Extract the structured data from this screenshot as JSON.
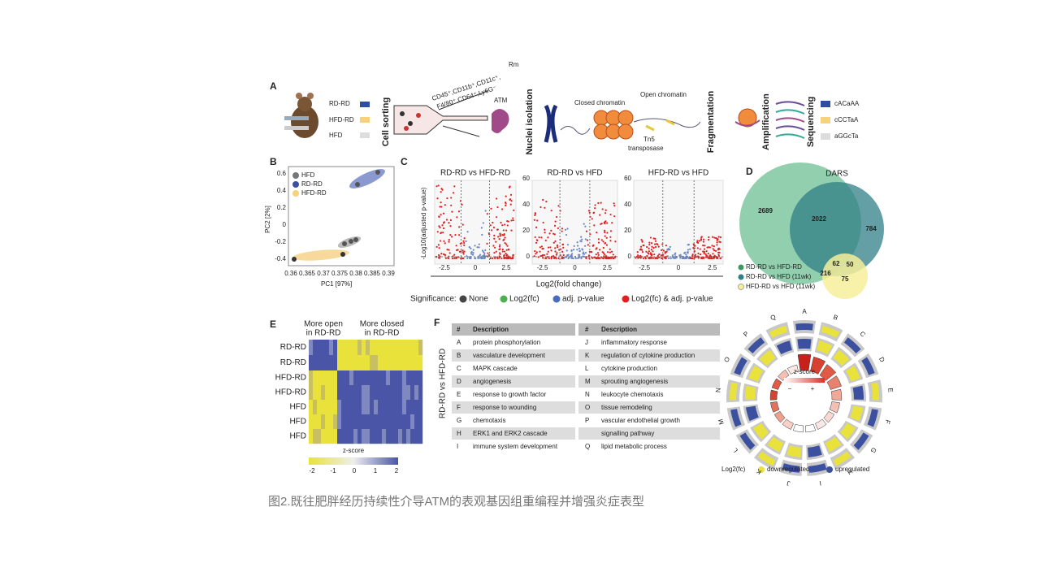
{
  "figure": {
    "a": {
      "label": "A",
      "groups": [
        "RD-RD",
        "HFD-RD",
        "HFD"
      ],
      "steps": [
        "Cell sorting",
        "Nuclei isolation",
        "Fragmentation",
        "Amplification",
        "Sequencing"
      ],
      "markers": [
        "CD45⁺,CD11b⁺,CD11c⁺,",
        "F4/80⁺,CD64⁺,Ly6G⁻"
      ],
      "cell": "ATM",
      "rm": "Rm",
      "closed": "Closed chromatin",
      "open": "Open chromatin",
      "enzyme": [
        "Tn5",
        "transposase"
      ],
      "motifs": [
        "cACaAA",
        "cCCTaA",
        "aGGcTa"
      ]
    },
    "b": {
      "label": "B",
      "legend": [
        "HFD",
        "RD-RD",
        "HFD-RD"
      ],
      "xlabel": "PC1 [97%]",
      "ylabel": "PC2 [2%]",
      "xticks": [
        "0.36",
        "0.365",
        "0.37",
        "0.375",
        "0.38",
        "0.385",
        "0.39"
      ],
      "yticks": [
        "0.6",
        "0.4",
        "0.2",
        "0",
        "-0.2",
        "-0.4"
      ]
    },
    "c": {
      "label": "C",
      "titles": [
        "RD-RD vs HFD-RD",
        "RD-RD vs HFD",
        "HFD-RD vs HFD"
      ],
      "ylabel": "-Log10(adjusted p-value)",
      "yticks": [
        "0",
        "20",
        "40",
        "60"
      ],
      "xticks": [
        "-2.5",
        "0",
        "2.5"
      ],
      "xlabel": "Log2(fold change)",
      "legend_title": "Significance:",
      "legend": [
        "None",
        "Log2(fc)",
        "adj. p-value",
        "Log2(fc) & adj. p-value"
      ]
    },
    "d": {
      "label": "D",
      "title": "DARS",
      "counts": [
        "2689",
        "2022",
        "784",
        "62",
        "50",
        "216",
        "75"
      ],
      "legend": [
        "RD-RD vs HFD-RD",
        "RD-RD vs HFD (11wk)",
        "HFD-RD vs HFD (11wk)"
      ]
    },
    "e": {
      "label": "E",
      "headers": [
        [
          "More open",
          "in RD-RD"
        ],
        [
          "More closed",
          "in RD-RD"
        ]
      ],
      "rows": [
        "RD-RD",
        "RD-RD",
        "HFD-RD",
        "HFD-RD",
        "HFD",
        "HFD",
        "HFD"
      ],
      "scale_title": "z-score",
      "scale_ticks": [
        "-2",
        "-1",
        "0",
        "1",
        "2"
      ]
    },
    "f": {
      "label": "F",
      "side": "RD-RD vs HFD-RD",
      "columns": [
        "#",
        "Description"
      ],
      "left": [
        [
          "A",
          "protein phosphorylation"
        ],
        [
          "B",
          "vasculature development"
        ],
        [
          "C",
          "MAPK cascade"
        ],
        [
          "D",
          "angiogenesis"
        ],
        [
          "E",
          "response to growth factor"
        ],
        [
          "F",
          "response to wounding"
        ],
        [
          "G",
          "chemotaxis"
        ],
        [
          "H",
          "ERK1 and ERK2 cascade"
        ],
        [
          "I",
          "immune system development"
        ]
      ],
      "right": [
        [
          "J",
          "inflammatory response"
        ],
        [
          "K",
          "regulation of cytokine production"
        ],
        [
          "L",
          "cytokine production"
        ],
        [
          "M",
          "sprouting angiogenesis"
        ],
        [
          "N",
          "leukocyte chemotaxis"
        ],
        [
          "O",
          "tissue remodeling"
        ],
        [
          "P",
          "vascular endothelial growth",
          "signalling pathway"
        ],
        [
          "Q",
          "lipid metabolic process"
        ]
      ]
    },
    "g": {
      "letters": [
        "A",
        "B",
        "C",
        "D",
        "E",
        "F",
        "G",
        "H",
        "I",
        "J",
        "K",
        "L",
        "M",
        "N",
        "O",
        "P",
        "Q"
      ],
      "scale_title": "z-score",
      "scale_signs": [
        "−",
        "+"
      ],
      "legend_title": "Log2(fc)",
      "legend": [
        "downregulated",
        "upregulated"
      ]
    },
    "caption": "图2.既往肥胖经历持续性介导ATM的表观基因组重编程并增强炎症表型"
  }
}
